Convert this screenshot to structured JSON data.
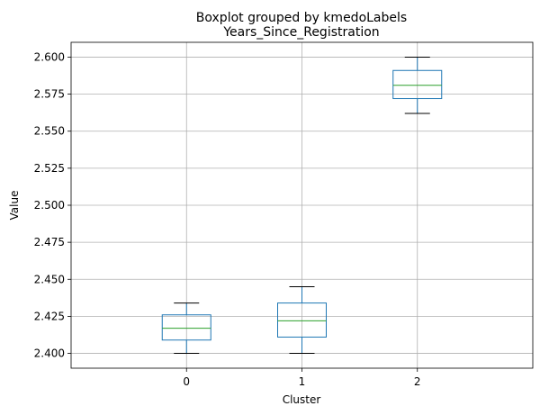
{
  "chart_data": {
    "type": "boxplot",
    "suptitle": "Boxplot grouped by kmedoLabels",
    "title": "Years_Since_Registration",
    "xlabel": "Cluster",
    "ylabel": "Value",
    "categories": [
      "0",
      "1",
      "2"
    ],
    "ylim": [
      2.39,
      2.61
    ],
    "yticks": [
      "2.400",
      "2.425",
      "2.450",
      "2.475",
      "2.500",
      "2.525",
      "2.550",
      "2.575",
      "2.600"
    ],
    "grid": true,
    "boxes": [
      {
        "label": "0",
        "whislo": 2.4,
        "q1": 2.409,
        "med": 2.417,
        "q3": 2.426,
        "whishi": 2.434
      },
      {
        "label": "1",
        "whislo": 2.4,
        "q1": 2.411,
        "med": 2.422,
        "q3": 2.434,
        "whishi": 2.445
      },
      {
        "label": "2",
        "whislo": 2.562,
        "q1": 2.572,
        "med": 2.581,
        "q3": 2.591,
        "whishi": 2.6
      }
    ],
    "colors": {
      "box": "#1f77b4",
      "median": "#2ca02c",
      "cap": "#000000",
      "grid": "#b0b0b0"
    }
  }
}
